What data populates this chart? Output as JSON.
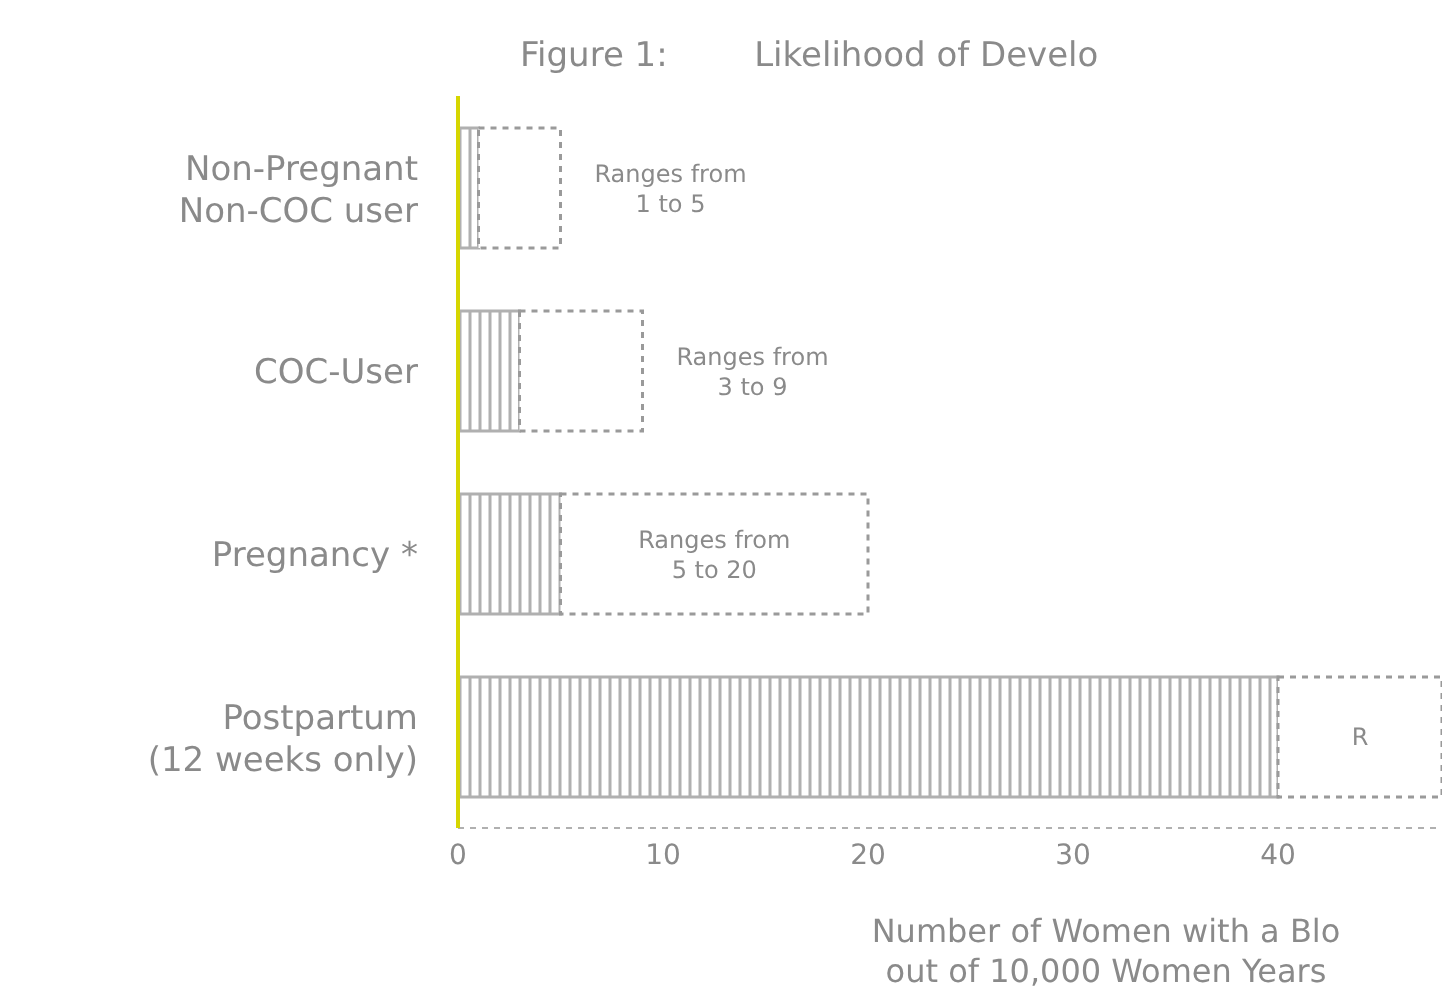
{
  "chart_data": {
    "type": "bar",
    "orientation": "horizontal",
    "stacked": true,
    "title": "Figure 1:        Likelihood of Develo",
    "xlabel": "Number of Women with a Blo\nout of 10,000 Women Years",
    "categories": [
      "Non-Pregnant\nNon-COC user",
      "COC-User",
      "Pregnancy *",
      "Postpartum\n(12 weeks only)"
    ],
    "series": [
      {
        "color": "#b0b0b0",
        "values": [
          1,
          3,
          5,
          40
        ]
      },
      {
        "color": "#ffffff",
        "values": [
          4,
          6,
          15,
          8
        ],
        "value_labels": [
          "Ranges from\n1 to 5",
          "Ranges from\n3 to 9",
          "Ranges from\n5 to 20",
          "R"
        ]
      }
    ],
    "xlim": [
      0,
      48
    ],
    "xticks": [
      0,
      10,
      20,
      30,
      40
    ]
  }
}
